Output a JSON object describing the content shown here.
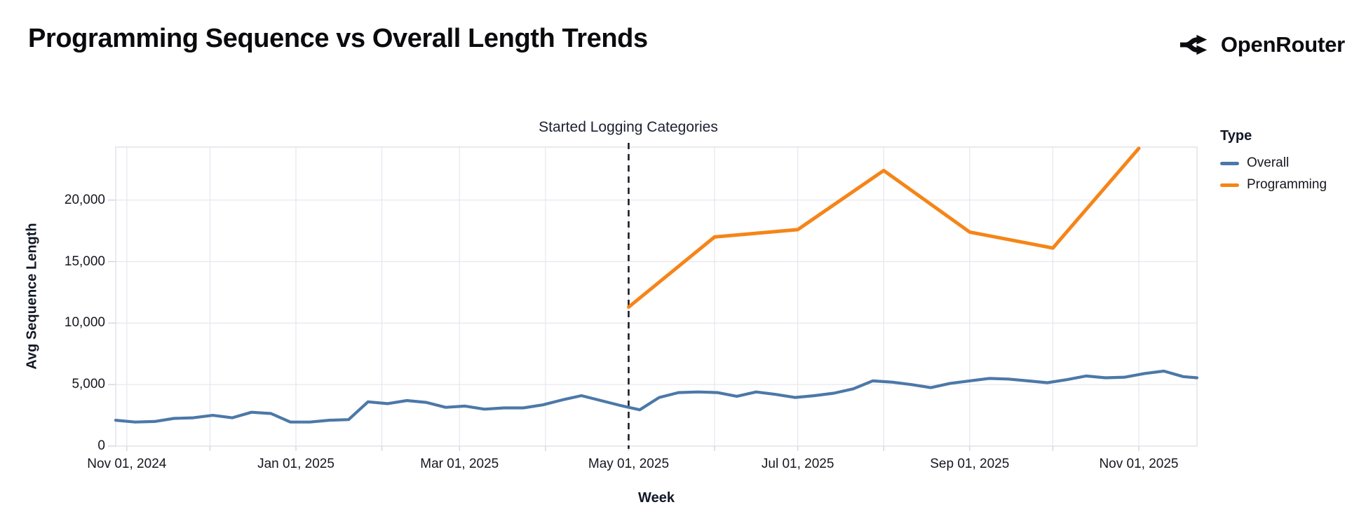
{
  "header": {
    "title": "Programming Sequence vs Overall Length Trends",
    "brand": "OpenRouter"
  },
  "chart_data": {
    "type": "line",
    "title": "Programming Sequence vs Overall Length Trends",
    "xlabel": "Week",
    "ylabel": "Avg Sequence Length",
    "x_domain": [
      "2024-10-28",
      "2025-11-22"
    ],
    "ylim": [
      0,
      24310
    ],
    "y_ticks": [
      0,
      5000,
      10000,
      15000,
      20000
    ],
    "y_tick_labels": [
      "0",
      "5,000",
      "10,000",
      "15,000",
      "20,000"
    ],
    "x_ticks": [
      {
        "date": "2024-11-01",
        "label": "Nov 01, 2024"
      },
      {
        "date": "2025-01-01",
        "label": "Jan 01, 2025"
      },
      {
        "date": "2025-03-01",
        "label": "Mar 01, 2025"
      },
      {
        "date": "2025-05-01",
        "label": "May 01, 2025"
      },
      {
        "date": "2025-07-01",
        "label": "Jul 01, 2025"
      },
      {
        "date": "2025-09-01",
        "label": "Sep 01, 2025"
      },
      {
        "date": "2025-11-01",
        "label": "Nov 01, 2025"
      }
    ],
    "x_gridlines": [
      "2024-11-01",
      "2024-12-01",
      "2025-01-01",
      "2025-02-01",
      "2025-03-01",
      "2025-04-01",
      "2025-05-01",
      "2025-06-01",
      "2025-07-01",
      "2025-08-01",
      "2025-09-01",
      "2025-10-01",
      "2025-11-01"
    ],
    "grid_on": true,
    "annotation": {
      "text": "Started Logging Categories",
      "date": "2025-05-01"
    },
    "legend": {
      "title": "Type",
      "position": "right"
    },
    "series": [
      {
        "name": "Overall",
        "color": "#4c78a8",
        "points": [
          [
            "2024-10-28",
            2100
          ],
          [
            "2024-11-04",
            1950
          ],
          [
            "2024-11-11",
            2000
          ],
          [
            "2024-11-18",
            2250
          ],
          [
            "2024-11-25",
            2300
          ],
          [
            "2024-12-02",
            2500
          ],
          [
            "2024-12-09",
            2300
          ],
          [
            "2024-12-16",
            2750
          ],
          [
            "2024-12-23",
            2650
          ],
          [
            "2024-12-30",
            1950
          ],
          [
            "2025-01-06",
            1950
          ],
          [
            "2025-01-13",
            2100
          ],
          [
            "2025-01-20",
            2150
          ],
          [
            "2025-01-27",
            3600
          ],
          [
            "2025-02-03",
            3450
          ],
          [
            "2025-02-10",
            3700
          ],
          [
            "2025-02-17",
            3550
          ],
          [
            "2025-02-24",
            3150
          ],
          [
            "2025-03-03",
            3250
          ],
          [
            "2025-03-10",
            3000
          ],
          [
            "2025-03-17",
            3100
          ],
          [
            "2025-03-24",
            3100
          ],
          [
            "2025-03-31",
            3350
          ],
          [
            "2025-04-07",
            3750
          ],
          [
            "2025-04-14",
            4100
          ],
          [
            "2025-04-21",
            3700
          ],
          [
            "2025-04-28",
            3300
          ],
          [
            "2025-05-05",
            2950
          ],
          [
            "2025-05-12",
            3950
          ],
          [
            "2025-05-19",
            4350
          ],
          [
            "2025-05-26",
            4400
          ],
          [
            "2025-06-02",
            4350
          ],
          [
            "2025-06-09",
            4050
          ],
          [
            "2025-06-16",
            4400
          ],
          [
            "2025-06-23",
            4200
          ],
          [
            "2025-06-30",
            3950
          ],
          [
            "2025-07-07",
            4100
          ],
          [
            "2025-07-14",
            4300
          ],
          [
            "2025-07-21",
            4650
          ],
          [
            "2025-07-28",
            5300
          ],
          [
            "2025-08-04",
            5200
          ],
          [
            "2025-08-11",
            5000
          ],
          [
            "2025-08-18",
            4750
          ],
          [
            "2025-08-25",
            5100
          ],
          [
            "2025-09-01",
            5300
          ],
          [
            "2025-09-08",
            5500
          ],
          [
            "2025-09-15",
            5450
          ],
          [
            "2025-09-22",
            5300
          ],
          [
            "2025-09-29",
            5150
          ],
          [
            "2025-10-06",
            5400
          ],
          [
            "2025-10-13",
            5700
          ],
          [
            "2025-10-20",
            5550
          ],
          [
            "2025-10-27",
            5600
          ],
          [
            "2025-11-03",
            5900
          ],
          [
            "2025-11-10",
            6100
          ],
          [
            "2025-11-17",
            5650
          ],
          [
            "2025-11-22",
            5550
          ]
        ]
      },
      {
        "name": "Programming",
        "color": "#f58518",
        "points": [
          [
            "2025-05-01",
            11300
          ],
          [
            "2025-06-01",
            17000
          ],
          [
            "2025-07-01",
            17600
          ],
          [
            "2025-08-01",
            22400
          ],
          [
            "2025-09-01",
            17400
          ],
          [
            "2025-10-01",
            16100
          ],
          [
            "2025-11-01",
            24200
          ]
        ]
      }
    ],
    "style": {
      "grid_color": "#e6e6ee",
      "border_color": "#e0e0e8",
      "tick_color": "#d4d4de",
      "annotation_line_color": "#1b1b26",
      "overall_color": "#4c78a8",
      "programming_color": "#f58518"
    }
  }
}
